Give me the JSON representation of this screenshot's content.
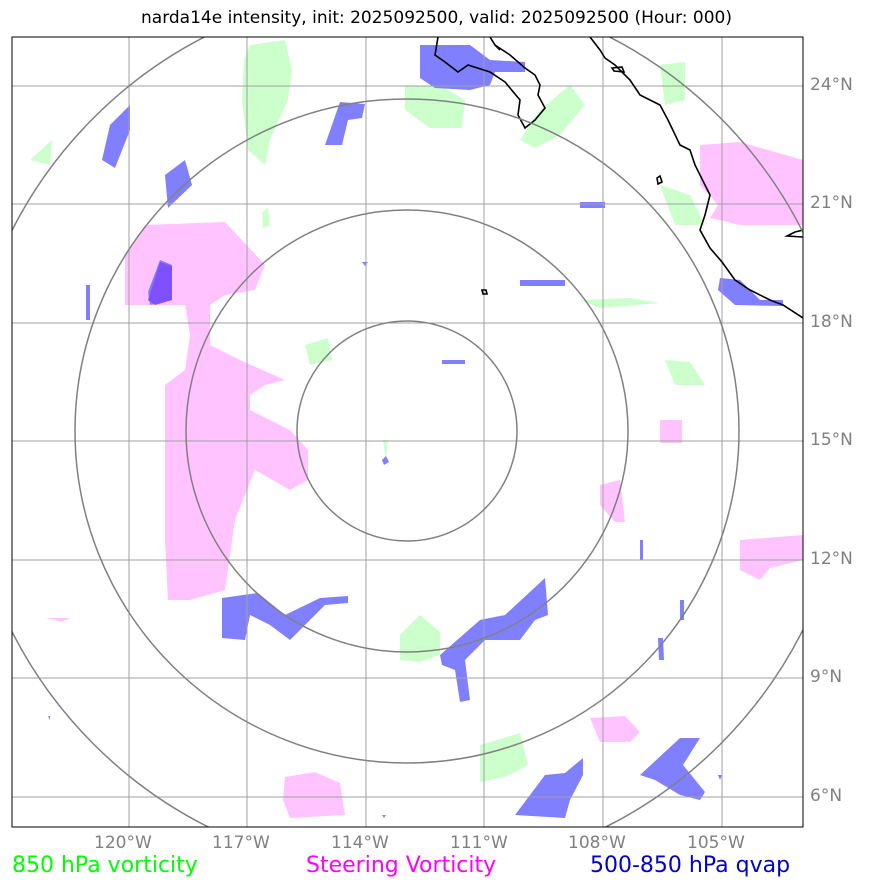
{
  "title": "narda14e intensity, init: 2025092500, valid: 2025092500 (Hour: 000)",
  "lat_labels": [
    "24°N",
    "21°N",
    "18°N",
    "15°N",
    "12°N",
    "9°N",
    "6°N"
  ],
  "lon_labels": [
    "120°W",
    "117°W",
    "114°W",
    "111°W",
    "108°W",
    "105°W"
  ],
  "legend": [
    {
      "label": "850 hPa vorticity",
      "color": "#00ff00"
    },
    {
      "label": "Steering Vorticity",
      "color": "#ff00ff"
    },
    {
      "label": "500-850 hPa qvap",
      "color": "#0000cd"
    }
  ],
  "colors": {
    "vorticity_850_fill": "#ccffcc",
    "steering_fill": "#ffc4ff",
    "qvap_fill": "#8080ff",
    "grid": "#a0a0a0",
    "range_rings": "#808080",
    "coastline": "#000000"
  },
  "storm_center": {
    "lat": 15.3,
    "lon": "112.8°W"
  }
}
